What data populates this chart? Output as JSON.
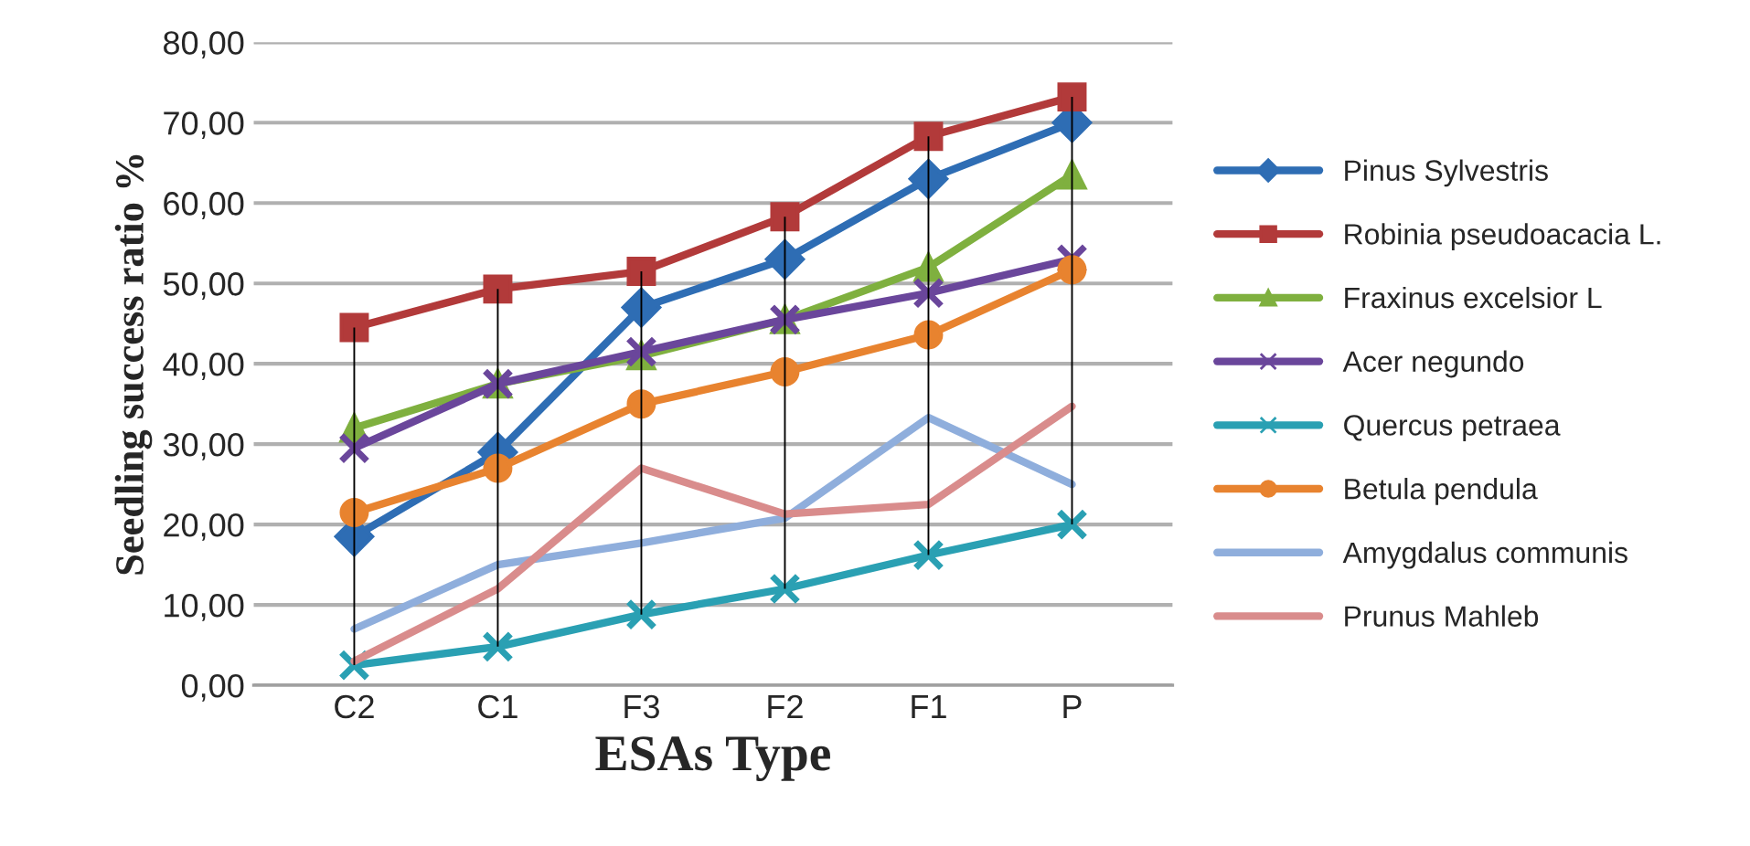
{
  "chart_data": {
    "type": "line",
    "xlabel": "ESAs Type",
    "ylabel": "Seedling success ratio %",
    "categories": [
      "C2",
      "C1",
      "F3",
      "F2",
      "F1",
      "P"
    ],
    "series": [
      {
        "name": "Pinus Sylvestris",
        "color": "#2e6db4",
        "marker": "diamond",
        "values": [
          18.5,
          29,
          47,
          53,
          63,
          70
        ]
      },
      {
        "name": "Robinia pseudoacacia L.",
        "color": "#b23a3a",
        "marker": "square",
        "values": [
          44.5,
          49.3,
          51.5,
          58.3,
          68.3,
          73.2
        ]
      },
      {
        "name": "Fraxinus excelsior L",
        "color": "#7fb03f",
        "marker": "triangle",
        "values": [
          32,
          37.5,
          41,
          45.5,
          52,
          63.5
        ]
      },
      {
        "name": "Acer negundo",
        "color": "#6a469b",
        "marker": "cross",
        "values": [
          29.5,
          37.5,
          41.5,
          45.5,
          48.8,
          53
        ]
      },
      {
        "name": "Quercus petraea",
        "color": "#2aa0b3",
        "marker": "cross",
        "values": [
          2.5,
          4.8,
          8.8,
          12,
          16.2,
          20
        ]
      },
      {
        "name": "Betula pendula",
        "color": "#e8832f",
        "marker": "circle",
        "values": [
          21.5,
          27,
          35,
          39,
          43.6,
          51.7
        ]
      },
      {
        "name": "Amygdalus communis",
        "color": "#8faedc",
        "marker": "none",
        "values": [
          7,
          15,
          17.7,
          20.8,
          33.3,
          25
        ]
      },
      {
        "name": "Prunus Mahleb",
        "color": "#d98c8c",
        "marker": "none",
        "values": [
          3,
          12,
          27,
          21.3,
          22.5,
          34.7
        ]
      },
      {
        "type": "bar",
        "color": "#000000",
        "base": [
          2.5,
          4.8,
          8.8,
          12,
          16.2,
          20
        ],
        "values": [
          42.0,
          44.5,
          42.7,
          46.3,
          52.1,
          53.2
        ]
      }
    ],
    "ylim": [
      0,
      80
    ],
    "yticks": [
      {
        "value": 0,
        "label": "0,00"
      },
      {
        "value": 10,
        "label": "10,00"
      },
      {
        "value": 20,
        "label": "20,00"
      },
      {
        "value": 30,
        "label": "30,00"
      },
      {
        "value": 40,
        "label": "40,00"
      },
      {
        "value": 50,
        "label": "50,00"
      },
      {
        "value": 60,
        "label": "60,00"
      },
      {
        "value": 70,
        "label": "70,00"
      },
      {
        "value": 80,
        "label": "80,00"
      }
    ],
    "grid": "y",
    "legend": "right",
    "line_style": "solid"
  }
}
